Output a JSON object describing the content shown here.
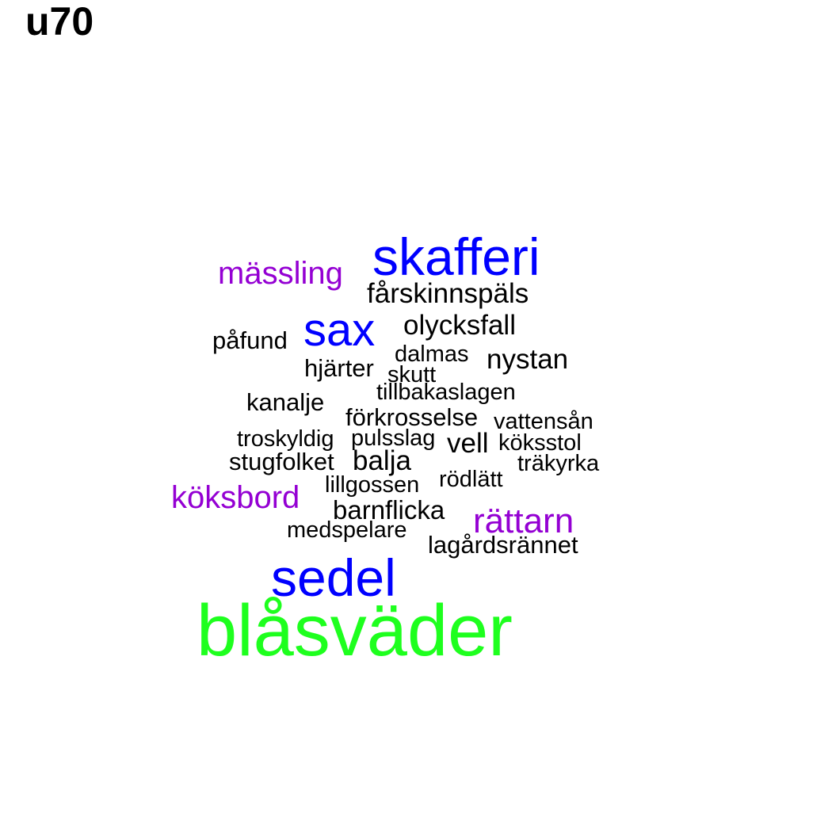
{
  "title": "u70",
  "chart_data": {
    "type": "wordcloud",
    "title": "u70",
    "colors": {
      "tier_small": "#000000",
      "tier_medium": "#9400D3",
      "tier_large": "#0000FF",
      "tier_top": "#1EFF1E"
    },
    "words": [
      {
        "text": "blåsväder",
        "tier": "top"
      },
      {
        "text": "sedel",
        "tier": "large"
      },
      {
        "text": "skafferi",
        "tier": "large"
      },
      {
        "text": "sax",
        "tier": "large"
      },
      {
        "text": "mässling",
        "tier": "medium"
      },
      {
        "text": "köksbord",
        "tier": "medium"
      },
      {
        "text": "rättarn",
        "tier": "medium"
      },
      {
        "text": "fårskinnspäls",
        "tier": "small"
      },
      {
        "text": "olycksfall",
        "tier": "small"
      },
      {
        "text": "nystan",
        "tier": "small"
      },
      {
        "text": "påfund",
        "tier": "small"
      },
      {
        "text": "dalmas",
        "tier": "small"
      },
      {
        "text": "hjärter",
        "tier": "small"
      },
      {
        "text": "skutt",
        "tier": "small"
      },
      {
        "text": "tillbakaslagen",
        "tier": "small"
      },
      {
        "text": "kanalje",
        "tier": "small"
      },
      {
        "text": "förkrosselse",
        "tier": "small"
      },
      {
        "text": "vattensån",
        "tier": "small"
      },
      {
        "text": "troskyldig",
        "tier": "small"
      },
      {
        "text": "pulsslag",
        "tier": "small"
      },
      {
        "text": "vell",
        "tier": "small"
      },
      {
        "text": "köksstol",
        "tier": "small"
      },
      {
        "text": "stugfolket",
        "tier": "small"
      },
      {
        "text": "balja",
        "tier": "small"
      },
      {
        "text": "träkyrka",
        "tier": "small"
      },
      {
        "text": "lillgossen",
        "tier": "small"
      },
      {
        "text": "rödlätt",
        "tier": "small"
      },
      {
        "text": "barnflicka",
        "tier": "small"
      },
      {
        "text": "medspelare",
        "tier": "small"
      },
      {
        "text": "lagårdsrännet",
        "tier": "small"
      }
    ]
  }
}
